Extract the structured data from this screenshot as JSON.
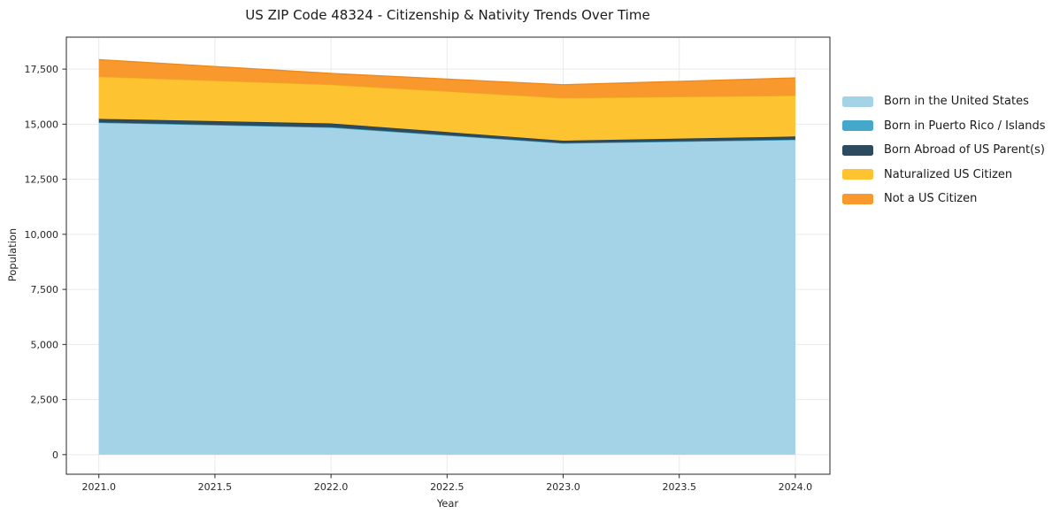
{
  "chart_data": {
    "type": "area",
    "stacked": true,
    "title": "US ZIP Code 48324 - Citizenship & Nativity Trends Over Time",
    "xlabel": "Year",
    "ylabel": "Population",
    "x": [
      2021,
      2022,
      2023,
      2024
    ],
    "series": [
      {
        "name": "Born in the United States",
        "color": "#a4d3e8",
        "edge": "#8cc3dc",
        "values": [
          15080,
          14860,
          14140,
          14300
        ]
      },
      {
        "name": "Born in Puerto Rico / Islands",
        "color": "#43a8c9",
        "edge": "#3897b8",
        "values": [
          0,
          0,
          0,
          0
        ]
      },
      {
        "name": "Born Abroad of US Parent(s)",
        "color": "#2c4b5e",
        "edge": "#223c4c",
        "values": [
          160,
          175,
          110,
          140
        ]
      },
      {
        "name": "Naturalized US Citizen",
        "color": "#fdc330",
        "edge": "#efb01c",
        "values": [
          1920,
          1760,
          1940,
          1860
        ]
      },
      {
        "name": "Not a US Citizen",
        "color": "#f8982d",
        "edge": "#ed8a1e",
        "values": [
          770,
          510,
          600,
          800
        ]
      }
    ],
    "totals": [
      17930,
      17305,
      16790,
      17100
    ],
    "x_ticks": {
      "values": [
        2021.0,
        2021.5,
        2022.0,
        2022.5,
        2023.0,
        2023.5,
        2024.0
      ],
      "labels": [
        "2021.0",
        "2021.5",
        "2022.0",
        "2022.5",
        "2023.0",
        "2023.5",
        "2024.0"
      ]
    },
    "y_ticks": {
      "values": [
        0,
        2500,
        5000,
        7500,
        10000,
        12500,
        15000,
        17500
      ],
      "labels": [
        "0",
        "2,500",
        "5,000",
        "7,500",
        "10,000",
        "12,500",
        "15,000",
        "17,500"
      ]
    },
    "xlim": [
      2020.86,
      2024.149
    ],
    "ylim": [
      -890,
      18950
    ],
    "grid": true,
    "legend_position": "outside-right",
    "colors": {
      "grid": "#e9e9e9",
      "spine": "#262626",
      "text": "#1a1a1a",
      "background": "#ffffff"
    }
  }
}
